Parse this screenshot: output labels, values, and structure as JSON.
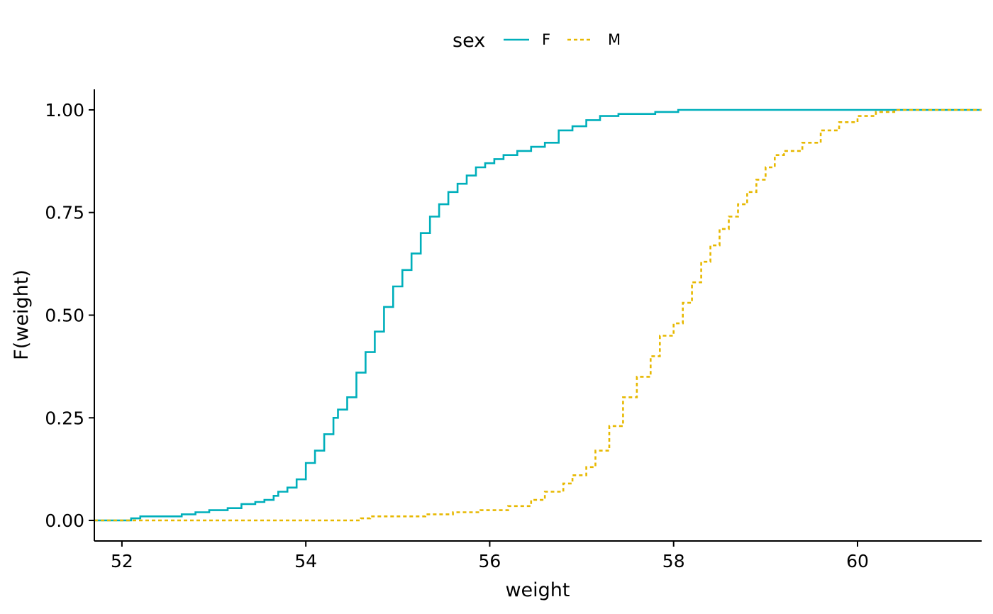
{
  "chart_data": {
    "type": "line",
    "subtype": "empirical cumulative distribution (step)",
    "xlabel": "weight",
    "ylabel": "F(weight)",
    "xlim": [
      51.7,
      61.35
    ],
    "ylim": [
      -0.05,
      1.05
    ],
    "x_ticks": [
      52,
      54,
      56,
      58,
      60
    ],
    "x_tick_labels": [
      "52",
      "54",
      "56",
      "58",
      "60"
    ],
    "y_ticks": [
      0,
      0.25,
      0.5,
      0.75,
      1.0
    ],
    "y_tick_labels": [
      "0.00",
      "0.25",
      "0.50",
      "0.75",
      "1.00"
    ],
    "grid": false,
    "legend": {
      "title": "sex",
      "placement": "top"
    },
    "series": [
      {
        "name": "F",
        "color": "#00AFBB",
        "line_style": "solid",
        "x": [
          51.7,
          52.05,
          52.1,
          52.2,
          52.4,
          52.65,
          52.8,
          52.95,
          53.15,
          53.3,
          53.45,
          53.55,
          53.65,
          53.7,
          53.8,
          53.9,
          54.0,
          54.1,
          54.2,
          54.3,
          54.35,
          54.45,
          54.55,
          54.65,
          54.75,
          54.85,
          54.95,
          55.05,
          55.15,
          55.25,
          55.35,
          55.45,
          55.55,
          55.65,
          55.75,
          55.85,
          55.95,
          56.05,
          56.15,
          56.3,
          56.45,
          56.6,
          56.75,
          56.9,
          57.05,
          57.2,
          57.4,
          57.8,
          58.05,
          61.35
        ],
        "y": [
          0.0,
          0.0,
          0.005,
          0.01,
          0.01,
          0.015,
          0.02,
          0.025,
          0.03,
          0.04,
          0.045,
          0.05,
          0.06,
          0.07,
          0.08,
          0.1,
          0.14,
          0.17,
          0.21,
          0.25,
          0.27,
          0.3,
          0.36,
          0.41,
          0.46,
          0.52,
          0.57,
          0.61,
          0.65,
          0.7,
          0.74,
          0.77,
          0.8,
          0.82,
          0.84,
          0.86,
          0.87,
          0.88,
          0.89,
          0.9,
          0.91,
          0.92,
          0.95,
          0.96,
          0.975,
          0.985,
          0.99,
          0.995,
          1.0,
          1.0
        ]
      },
      {
        "name": "M",
        "color": "#E7B800",
        "line_style": "dashed",
        "x": [
          51.7,
          54.55,
          54.6,
          54.7,
          55.0,
          55.3,
          55.6,
          55.9,
          56.2,
          56.45,
          56.6,
          56.8,
          56.9,
          57.05,
          57.15,
          57.3,
          57.45,
          57.6,
          57.75,
          57.85,
          58.0,
          58.1,
          58.2,
          58.3,
          58.4,
          58.5,
          58.6,
          58.7,
          58.8,
          58.9,
          59.0,
          59.1,
          59.2,
          59.4,
          59.6,
          59.8,
          60.0,
          60.2,
          60.4,
          61.35
        ],
        "y": [
          0.0,
          0.0,
          0.005,
          0.01,
          0.01,
          0.015,
          0.02,
          0.025,
          0.035,
          0.05,
          0.07,
          0.09,
          0.11,
          0.13,
          0.17,
          0.23,
          0.3,
          0.35,
          0.4,
          0.45,
          0.48,
          0.53,
          0.58,
          0.63,
          0.67,
          0.71,
          0.74,
          0.77,
          0.8,
          0.83,
          0.86,
          0.89,
          0.9,
          0.92,
          0.95,
          0.97,
          0.985,
          0.995,
          1.0,
          1.0
        ]
      }
    ]
  }
}
